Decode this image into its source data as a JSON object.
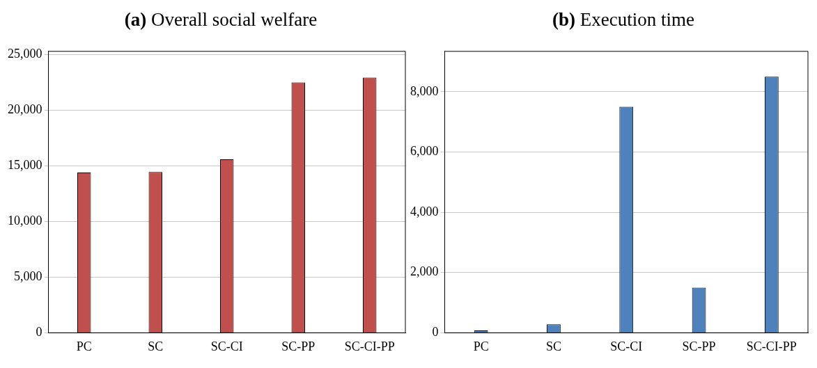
{
  "chart_data": [
    {
      "type": "bar",
      "title": "(a) Overall social welfare",
      "categories": [
        "PC",
        "SC",
        "SC-CI",
        "SC-PP",
        "SC-CI-PP"
      ],
      "values": [
        14400,
        14450,
        15600,
        22500,
        22950
      ],
      "color": "#c0504d",
      "ylim": [
        0,
        25300
      ],
      "yticks": [
        0,
        {
          "value": 5000,
          "label": "5,000"
        },
        {
          "value": 10000,
          "label": "10,000"
        },
        {
          "value": 15000,
          "label": "15,000"
        },
        {
          "value": 20000,
          "label": "20,000"
        },
        {
          "value": 25000,
          "label": "25,000"
        }
      ],
      "grid": "y"
    },
    {
      "type": "bar",
      "title": "(b) Execution time",
      "categories": [
        "PC",
        "SC",
        "SC-CI",
        "SC-PP",
        "SC-CI-PP"
      ],
      "values": [
        80,
        280,
        7500,
        1500,
        8500
      ],
      "color": "#4f81bd",
      "ylim": [
        0,
        9340
      ],
      "yticks": [
        0,
        {
          "value": 2000,
          "label": "2,000"
        },
        {
          "value": 4000,
          "label": "4,000"
        },
        {
          "value": 6000,
          "label": "6,000"
        },
        {
          "value": 8000,
          "label": "8,000"
        }
      ],
      "grid": "y"
    }
  ]
}
